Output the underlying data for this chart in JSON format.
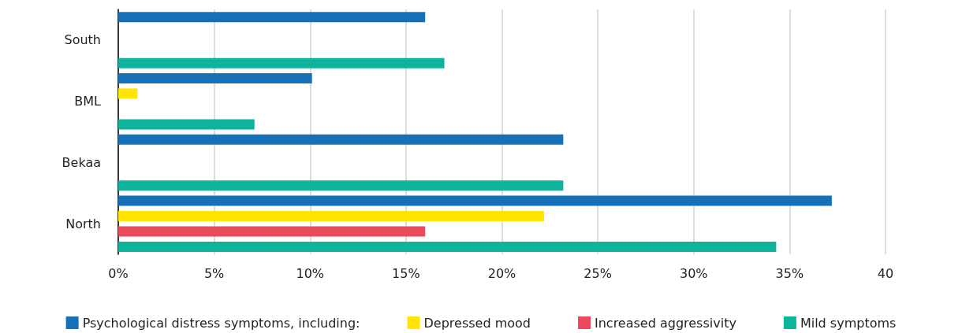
{
  "chart_data": {
    "type": "bar",
    "orientation": "horizontal",
    "categories": [
      "South",
      "BML",
      "Bekaa",
      "North"
    ],
    "series": [
      {
        "name": "Psychological distress symptoms, including:",
        "color": "#1570b8",
        "values": [
          16,
          10.1,
          23.2,
          37.2
        ]
      },
      {
        "name": "Depressed mood",
        "color": "#ffe500",
        "values": [
          null,
          1,
          null,
          22.2
        ]
      },
      {
        "name": "Increased aggressivity",
        "color": "#e94b5c",
        "values": [
          null,
          null,
          null,
          16
        ]
      },
      {
        "name": "Mild symptoms",
        "color": "#0db39b",
        "values": [
          17,
          7.1,
          23.2,
          34.3
        ]
      }
    ],
    "xlim": [
      0,
      40
    ],
    "xticks": [
      {
        "value": 0,
        "label": "0%"
      },
      {
        "value": 5,
        "label": "5%"
      },
      {
        "value": 10,
        "label": "10%"
      },
      {
        "value": 15,
        "label": "15%"
      },
      {
        "value": 20,
        "label": "20%"
      },
      {
        "value": 25,
        "label": "25%"
      },
      {
        "value": 30,
        "label": "30%"
      },
      {
        "value": 35,
        "label": "35%"
      },
      {
        "value": 40,
        "label": "40"
      }
    ],
    "grid": "x",
    "legend": "bottom"
  }
}
